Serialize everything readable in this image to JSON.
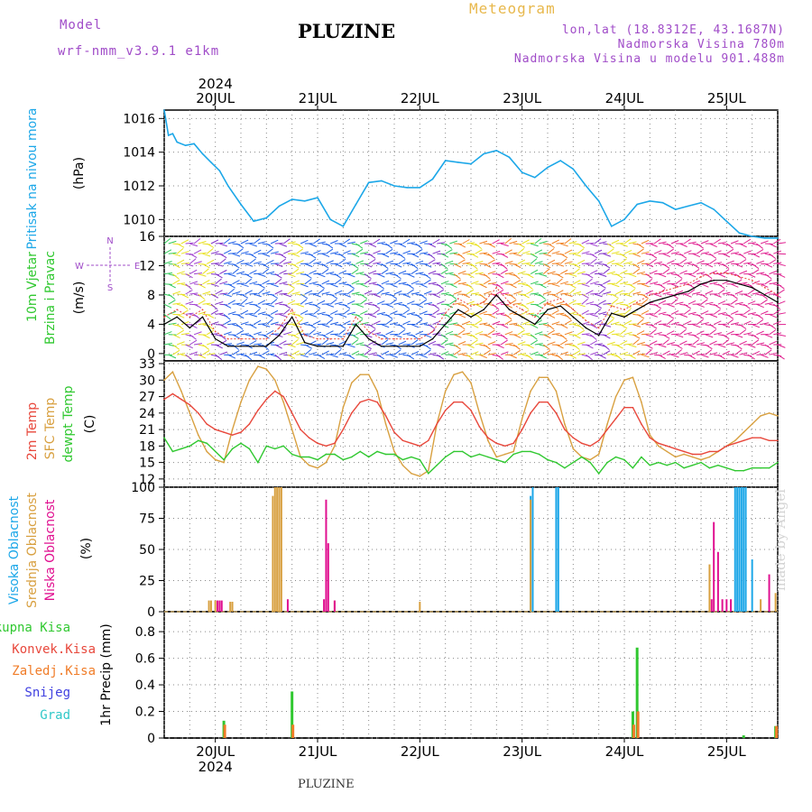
{
  "header": {
    "model_label": "Model",
    "model_name": "wrf-nmm_v3.9.1 e1km",
    "title": "PLUZINE",
    "subtitle": "Meteogram",
    "coords": "lon,lat (18.8312E, 43.1687N)",
    "elevation": "Nadmorska Visina 780m",
    "model_elevation": "Nadmorska Visina u modelu 901.488m",
    "footer": "PLUZINE",
    "watermark": "made by Angel",
    "year": "2024",
    "days": [
      "20JUL",
      "21JUL",
      "22JUL",
      "23JUL",
      "24JUL",
      "25JUL"
    ]
  },
  "colors": {
    "pressure": "#1ca7e8",
    "temp2m": "#e8483c",
    "sfc": "#d8a040",
    "dewpt": "#30c830",
    "high_cloud": "#1ca7e8",
    "mid_cloud": "#d8a040",
    "low_cloud": "#e01090",
    "total_precip": "#30c830",
    "conv_precip": "#e8483c",
    "frz_precip": "#f07c28",
    "snow": "#4040e0",
    "hail": "#30c8c8"
  },
  "chart_data": [
    {
      "type": "line",
      "panel": "pressure",
      "ylabel_left": "Pritisak na nivou mora",
      "ylabel_unit": "(hPa)",
      "yticks": [
        "1010",
        "1012",
        "1014",
        "1016"
      ],
      "ylim": [
        1009,
        1016.5
      ],
      "x_unit": "hours from 2024-07-19 12:00 UTC",
      "x": [
        0,
        1,
        2,
        3,
        5,
        7,
        9,
        11,
        13,
        15,
        18,
        21,
        24,
        27,
        30,
        33,
        36,
        39,
        42,
        45,
        48,
        51,
        54,
        57,
        60,
        63,
        66,
        69,
        72,
        75,
        78,
        81,
        84,
        87,
        90,
        93,
        96,
        99,
        102,
        105,
        108,
        111,
        114,
        117,
        120,
        123,
        126,
        129,
        132,
        135,
        138,
        141,
        144
      ],
      "values": [
        1016.5,
        1015.0,
        1015.1,
        1014.6,
        1014.4,
        1014.5,
        1013.9,
        1013.4,
        1012.9,
        1012.0,
        1010.9,
        1009.9,
        1010.1,
        1010.8,
        1011.2,
        1011.1,
        1011.3,
        1010.0,
        1009.6,
        1010.9,
        1012.2,
        1012.3,
        1012.0,
        1011.9,
        1011.9,
        1012.4,
        1013.5,
        1013.4,
        1013.3,
        1013.9,
        1014.1,
        1013.7,
        1012.8,
        1012.5,
        1013.1,
        1013.5,
        1013.0,
        1012.0,
        1011.1,
        1009.6,
        1010.0,
        1010.9,
        1011.1,
        1011.0,
        1010.6,
        1010.8,
        1011.0,
        1010.6,
        1009.9,
        1009.2,
        1009.0,
        1008.9,
        1008.9
      ],
      "grid": true
    },
    {
      "type": "line",
      "panel": "wind",
      "ylabel_left": "10m Vjetar Brzina i Pravac",
      "ylabel_unit": "(m/s)",
      "compass": "W <-- N / S --> E",
      "yticks": [
        "0",
        "4",
        "8",
        "12",
        "16"
      ],
      "ylim": [
        -1,
        16
      ],
      "x_unit": "hours from 2024-07-19 12:00 UTC",
      "series": [
        {
          "x": [
            0,
            3,
            6,
            9,
            12,
            15,
            18,
            21,
            24,
            27,
            30,
            33,
            36,
            39,
            42,
            45,
            48,
            51,
            54,
            57,
            60,
            63,
            66,
            69,
            72,
            75,
            78,
            81,
            84,
            87,
            90,
            93,
            96,
            99,
            102,
            105,
            108,
            111,
            114,
            117,
            120,
            123,
            126,
            129,
            132,
            135,
            138,
            141,
            144
          ],
          "values": [
            4.0,
            5.0,
            3.5,
            5.0,
            2.0,
            1.0,
            1.0,
            1.0,
            1.0,
            2.5,
            5.0,
            1.5,
            1.0,
            1.0,
            1.0,
            4.0,
            2.0,
            1.0,
            1.0,
            1.0,
            1.0,
            2.0,
            4.0,
            6.0,
            5.0,
            6.0,
            8.0,
            6.0,
            5.0,
            4.0,
            6.0,
            6.5,
            5.0,
            3.5,
            2.5,
            5.5,
            5.0,
            6.0,
            7.0,
            7.5,
            8.0,
            8.5,
            9.5,
            10.0,
            10.0,
            9.5,
            9.0,
            8.0,
            7.0
          ]
        },
        {
          "x": [
            0,
            3,
            6,
            9,
            12,
            15,
            18,
            21,
            24,
            27,
            30,
            33,
            36,
            39,
            42,
            45,
            48,
            51,
            54,
            57,
            60,
            63,
            66,
            69,
            72,
            75,
            78,
            81,
            84,
            87,
            90,
            93,
            96,
            99,
            102,
            105,
            108,
            111,
            114,
            117,
            120,
            123,
            126,
            129,
            132,
            135,
            138,
            141,
            144
          ],
          "values": [
            5.0,
            6.0,
            5.0,
            6.0,
            3.0,
            2.0,
            2.0,
            2.0,
            2.0,
            3.5,
            6.0,
            2.5,
            2.0,
            2.0,
            2.0,
            5.0,
            3.0,
            2.0,
            2.0,
            2.0,
            2.0,
            3.0,
            5.5,
            7.5,
            6.5,
            7.0,
            9.0,
            7.0,
            6.0,
            5.0,
            7.0,
            7.5,
            6.0,
            4.5,
            3.5,
            6.5,
            6.0,
            7.0,
            8.0,
            8.5,
            9.0,
            9.5,
            10.5,
            11.0,
            11.0,
            10.5,
            10.0,
            9.0,
            8.0
          ]
        }
      ],
      "grid": true
    },
    {
      "type": "line",
      "panel": "temperature",
      "ylabel_left": [
        "2m Temp",
        "SFC Temp",
        "dewpt Temp"
      ],
      "ylabel_unit": "(C)",
      "yticks": [
        "12",
        "15",
        "18",
        "21",
        "24",
        "27",
        "30",
        "33"
      ],
      "ylim": [
        10.5,
        33.5
      ],
      "x_unit": "hours from 2024-07-19 12:00 UTC",
      "series": [
        {
          "name": "2m Temp",
          "x": [
            0,
            2,
            4,
            6,
            8,
            10,
            12,
            14,
            16,
            18,
            20,
            22,
            24,
            26,
            28,
            30,
            32,
            34,
            36,
            38,
            40,
            42,
            44,
            46,
            48,
            50,
            52,
            54,
            56,
            58,
            60,
            62,
            64,
            66,
            68,
            70,
            72,
            74,
            76,
            78,
            80,
            82,
            84,
            86,
            88,
            90,
            92,
            94,
            96,
            98,
            100,
            102,
            104,
            106,
            108,
            110,
            112,
            114,
            116,
            118,
            120,
            122,
            124,
            126,
            128,
            130,
            132,
            134,
            136,
            138,
            140,
            142,
            144
          ],
          "values": [
            26.5,
            27.5,
            26.5,
            25.5,
            24.0,
            22.0,
            21.0,
            20.5,
            20.0,
            20.5,
            22.0,
            24.5,
            26.5,
            28.0,
            27.0,
            24.0,
            21.0,
            19.5,
            18.5,
            18.0,
            18.5,
            21.0,
            24.0,
            26.0,
            26.5,
            26.0,
            23.5,
            20.5,
            19.0,
            18.5,
            18.0,
            19.0,
            22.0,
            24.5,
            26.0,
            26.0,
            24.5,
            21.5,
            19.5,
            18.5,
            18.0,
            18.5,
            21.0,
            24.0,
            26.0,
            26.0,
            24.0,
            21.0,
            19.5,
            18.5,
            18.0,
            19.0,
            21.0,
            23.0,
            25.0,
            25.0,
            22.0,
            19.5,
            18.5,
            18.0,
            17.5,
            17.0,
            16.5,
            16.5,
            17.0,
            17.0,
            18.0,
            18.5,
            19.0,
            19.5,
            19.5,
            19.0,
            19.0
          ]
        },
        {
          "name": "SFC Temp",
          "x": [
            0,
            2,
            4,
            6,
            8,
            10,
            12,
            14,
            16,
            18,
            20,
            22,
            24,
            26,
            28,
            30,
            32,
            34,
            36,
            38,
            40,
            42,
            44,
            46,
            48,
            50,
            52,
            54,
            56,
            58,
            60,
            62,
            64,
            66,
            68,
            70,
            72,
            74,
            76,
            78,
            80,
            82,
            84,
            86,
            88,
            90,
            92,
            94,
            96,
            98,
            100,
            102,
            104,
            106,
            108,
            110,
            112,
            114,
            116,
            118,
            120,
            122,
            124,
            126,
            128,
            130,
            132,
            134,
            136,
            138,
            140,
            142,
            144
          ],
          "values": [
            30.0,
            31.5,
            28.0,
            24.0,
            20.0,
            17.0,
            15.5,
            15.0,
            21.0,
            26.0,
            30.0,
            32.5,
            32.0,
            30.0,
            26.0,
            21.0,
            16.0,
            14.5,
            14.0,
            15.0,
            18.0,
            25.0,
            29.5,
            31.0,
            31.0,
            28.0,
            22.0,
            17.0,
            14.5,
            13.0,
            12.5,
            13.5,
            22.0,
            28.0,
            31.0,
            31.5,
            29.5,
            24.0,
            19.0,
            16.0,
            16.5,
            17.0,
            23.0,
            28.0,
            30.5,
            30.5,
            28.0,
            22.0,
            17.5,
            16.0,
            15.5,
            16.5,
            22.0,
            27.0,
            30.0,
            30.5,
            26.0,
            20.0,
            18.0,
            17.0,
            16.0,
            16.5,
            16.0,
            15.5,
            16.0,
            17.0,
            18.0,
            19.0,
            20.5,
            22.0,
            23.5,
            24.0,
            23.5
          ]
        },
        {
          "name": "dewpt Temp",
          "x": [
            0,
            2,
            4,
            6,
            8,
            10,
            12,
            14,
            16,
            18,
            20,
            22,
            24,
            26,
            28,
            30,
            32,
            34,
            36,
            38,
            40,
            42,
            44,
            46,
            48,
            50,
            52,
            54,
            56,
            58,
            60,
            62,
            64,
            66,
            68,
            70,
            72,
            74,
            76,
            78,
            80,
            82,
            84,
            86,
            88,
            90,
            92,
            94,
            96,
            98,
            100,
            102,
            104,
            106,
            108,
            110,
            112,
            114,
            116,
            118,
            120,
            122,
            124,
            126,
            128,
            130,
            132,
            134,
            136,
            138,
            140,
            142,
            144
          ],
          "values": [
            19.5,
            17.0,
            17.5,
            18.0,
            19.0,
            18.5,
            17.0,
            15.5,
            17.5,
            18.5,
            17.5,
            15.0,
            18.0,
            17.5,
            18.0,
            16.5,
            16.0,
            16.0,
            15.5,
            16.5,
            16.5,
            15.5,
            16.0,
            17.0,
            16.0,
            17.0,
            16.5,
            16.5,
            15.5,
            16.0,
            15.5,
            13.0,
            14.5,
            16.0,
            17.0,
            17.0,
            16.0,
            16.5,
            16.0,
            15.5,
            15.0,
            16.5,
            17.0,
            17.0,
            16.5,
            15.5,
            15.0,
            14.0,
            15.0,
            16.0,
            15.0,
            13.0,
            15.0,
            16.0,
            15.5,
            14.0,
            16.0,
            14.5,
            15.0,
            14.5,
            15.0,
            14.0,
            14.5,
            15.0,
            14.0,
            14.5,
            14.0,
            13.5,
            13.5,
            14.0,
            14.0,
            14.0,
            15.0
          ]
        }
      ],
      "grid": true
    },
    {
      "type": "bar",
      "panel": "cloud",
      "ylabel_left": [
        "Visoka Oblacnost",
        "Srednja Oblacnost",
        "Niska Oblacnost"
      ],
      "ylabel_unit": "(%)",
      "yticks": [
        "0",
        "25",
        "50",
        "75",
        "100"
      ],
      "ylim": [
        0,
        100
      ],
      "x_unit": "hours from 2024-07-19 12:00 UTC",
      "series": [
        {
          "name": "Visoka Oblacnost",
          "x": [
            86,
            86.5,
            92,
            92.5,
            134,
            134.5,
            135,
            135.5,
            136,
            136.5,
            138
          ],
          "values": [
            93,
            100,
            100,
            100,
            100,
            100,
            100,
            100,
            100,
            100,
            42
          ]
        },
        {
          "name": "Srednja Oblacnost",
          "x": [
            10.5,
            11,
            12,
            15.5,
            16,
            25.5,
            26,
            26.5,
            27,
            27.5,
            40,
            60,
            86,
            128,
            140,
            143.5
          ],
          "values": [
            9,
            9,
            9,
            8,
            8,
            93,
            100,
            100,
            100,
            100,
            9,
            8,
            90,
            38,
            10,
            15
          ]
        },
        {
          "name": "Niska Oblacnost",
          "x": [
            12.5,
            13,
            13.5,
            29,
            37.5,
            38,
            38.5,
            40,
            128.5,
            129,
            130,
            131,
            132,
            133,
            142
          ],
          "values": [
            9,
            9,
            9,
            10,
            10,
            90,
            55,
            9,
            10,
            72,
            48,
            10,
            10,
            10,
            30
          ]
        }
      ],
      "grid": true
    },
    {
      "type": "bar",
      "panel": "precipitation",
      "ylabel_left": [
        "Ukupna Kisa",
        "Konvek.Kisa",
        "Zaledj.Kisa",
        "Snijeg",
        "Grad"
      ],
      "ylabel_unit": "1hr Precip (mm)",
      "yticks": [
        "0",
        "0.2",
        "0.4",
        "0.6",
        "0.8"
      ],
      "ylim": [
        0,
        0.95
      ],
      "x_unit": "hours from 2024-07-19 12:00 UTC",
      "series": [
        {
          "name": "Ukupna Kisa",
          "x": [
            14,
            30,
            110,
            111,
            136,
            143.5
          ],
          "values": [
            0.13,
            0.35,
            0.2,
            0.68,
            0.02,
            0.09
          ]
        },
        {
          "name": "Konvek.Kisa",
          "x": [
            14,
            30,
            110,
            111,
            143.5
          ],
          "values": [
            0.1,
            0.1,
            0.1,
            0.2,
            0.09
          ]
        }
      ],
      "grid": true
    }
  ]
}
